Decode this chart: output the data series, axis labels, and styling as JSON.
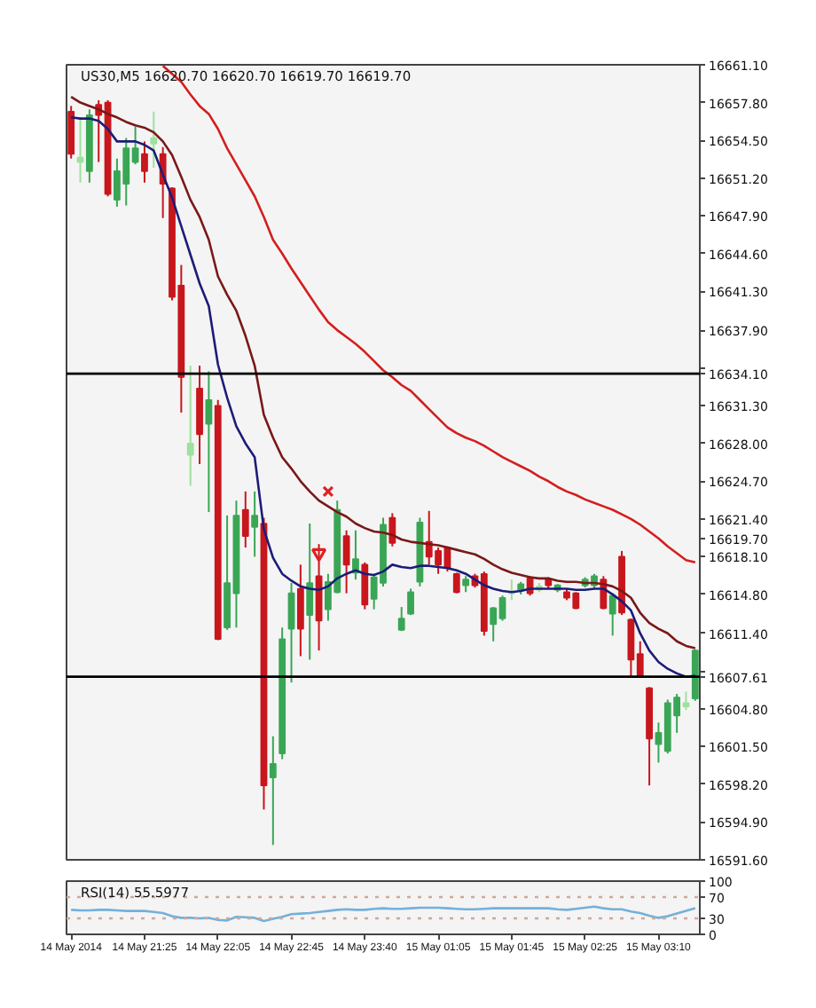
{
  "chart_data": [
    {
      "type": "candlestick",
      "title": "US30,M5 16620.70 16620.70 16619.70 16619.70",
      "categories": [
        "14 May 2014",
        null,
        null,
        null,
        null,
        null,
        null,
        null,
        "14 May 21:25",
        null,
        null,
        null,
        null,
        null,
        null,
        null,
        "14 May 22:05",
        null,
        null,
        null,
        null,
        null,
        null,
        null,
        "14 May 22:45",
        null,
        null,
        null,
        null,
        null,
        null,
        null,
        "14 May 23:40",
        null,
        null,
        null,
        null,
        null,
        null,
        null,
        "15 May 01:05",
        null,
        null,
        null,
        null,
        null,
        null,
        null,
        "15 May 01:45",
        null,
        null,
        null,
        null,
        null,
        null,
        null,
        "15 May 02:25",
        null,
        null,
        null,
        null,
        null,
        null,
        null,
        "15 May 03:10",
        null,
        null,
        null,
        null
      ],
      "ohlc": [
        [
          16657.0,
          16657.5,
          16652.9,
          16653.3
        ],
        [
          16652.6,
          16656.5,
          16650.8,
          16653.0
        ],
        [
          16651.8,
          16657.2,
          16650.8,
          16656.7
        ],
        [
          16657.6,
          16658.0,
          16652.6,
          16656.7
        ],
        [
          16657.8,
          16658.0,
          16649.6,
          16649.8
        ],
        [
          16649.3,
          16652.9,
          16648.7,
          16651.8
        ],
        [
          16650.7,
          16654.7,
          16648.8,
          16653.8
        ],
        [
          16652.6,
          16655.7,
          16652.4,
          16653.8
        ],
        [
          16653.3,
          16654.4,
          16650.8,
          16651.8
        ],
        [
          16654.2,
          16657.0,
          16652.1,
          16654.7
        ],
        [
          16653.3,
          16653.9,
          16647.7,
          16650.7
        ],
        [
          16650.3,
          16650.4,
          16640.5,
          16640.8
        ],
        [
          16641.8,
          16643.6,
          16630.7,
          16633.8
        ],
        [
          16627.0,
          16634.8,
          16624.3,
          16628.0
        ],
        [
          16632.8,
          16634.8,
          16626.2,
          16628.8
        ],
        [
          16629.7,
          16634.3,
          16622.0,
          16631.8
        ],
        [
          16631.3,
          16631.8,
          16610.8,
          16610.9
        ],
        [
          16611.9,
          16621.7,
          16611.7,
          16615.8
        ],
        [
          16614.9,
          16623.0,
          16611.9,
          16621.7
        ],
        [
          16622.2,
          16623.8,
          16618.9,
          16619.9
        ],
        [
          16620.7,
          16623.8,
          16618.1,
          16621.7
        ],
        [
          16621.0,
          16621.5,
          16596.0,
          16598.1
        ],
        [
          16598.8,
          16602.4,
          16592.9,
          16600.0
        ],
        [
          16600.9,
          16611.9,
          16600.4,
          16610.9
        ],
        [
          16611.8,
          16615.8,
          16607.1,
          16614.9
        ],
        [
          16615.3,
          16617.4,
          16609.4,
          16611.8
        ],
        [
          16613.0,
          16621.0,
          16609.1,
          16615.8
        ],
        [
          16616.4,
          16619.2,
          16609.9,
          16612.5
        ],
        [
          16613.5,
          16616.6,
          16612.5,
          16615.9
        ],
        [
          16615.0,
          16623.0,
          16614.9,
          16622.2
        ],
        [
          16619.9,
          16620.4,
          16614.9,
          16617.4
        ],
        [
          16616.7,
          16620.4,
          16616.1,
          16617.9
        ],
        [
          16617.4,
          16617.6,
          16613.5,
          16613.9
        ],
        [
          16614.4,
          16616.6,
          16613.5,
          16616.3
        ],
        [
          16615.8,
          16621.5,
          16615.5,
          16620.9
        ],
        [
          16621.5,
          16621.9,
          16619.0,
          16619.3
        ],
        [
          16611.7,
          16613.7,
          16611.6,
          16612.7
        ],
        [
          16613.1,
          16615.3,
          16613.0,
          16615.0
        ],
        [
          16615.9,
          16621.5,
          16615.5,
          16621.1
        ],
        [
          16619.4,
          16622.1,
          16617.4,
          16618.1
        ],
        [
          16618.6,
          16618.9,
          16616.6,
          16617.4
        ],
        [
          16618.9,
          16619.0,
          16616.8,
          16617.1
        ],
        [
          16616.6,
          16616.7,
          16614.9,
          16615.0
        ],
        [
          16615.6,
          16616.4,
          16615.0,
          16616.1
        ],
        [
          16616.4,
          16616.6,
          16615.4,
          16615.6
        ],
        [
          16616.6,
          16616.8,
          16611.2,
          16611.6
        ],
        [
          16612.2,
          16613.7,
          16610.7,
          16613.6
        ],
        [
          16612.7,
          16614.7,
          16612.5,
          16614.5
        ],
        [
          16614.9,
          16616.1,
          16614.3,
          16615.0
        ],
        [
          16615.2,
          16615.9,
          16614.8,
          16615.7
        ],
        [
          16616.2,
          16616.4,
          16614.7,
          16614.9
        ],
        [
          16615.2,
          16615.8,
          16615.0,
          16615.5
        ],
        [
          16616.1,
          16616.3,
          16615.3,
          16615.6
        ],
        [
          16615.2,
          16615.7,
          16615.0,
          16615.6
        ],
        [
          16615.0,
          16615.3,
          16614.3,
          16614.5
        ],
        [
          16614.9,
          16615.0,
          16613.5,
          16613.6
        ],
        [
          16615.6,
          16616.3,
          16615.4,
          16616.1
        ],
        [
          16615.6,
          16616.6,
          16615.3,
          16616.4
        ],
        [
          16616.1,
          16616.4,
          16613.5,
          16613.6
        ],
        [
          16613.1,
          16614.9,
          16611.2,
          16614.7
        ],
        [
          16618.1,
          16618.6,
          16613.0,
          16613.2
        ],
        [
          16612.6,
          16612.7,
          16607.6,
          16609.1
        ],
        [
          16609.6,
          16610.7,
          16607.6,
          16607.7
        ],
        [
          16606.6,
          16606.7,
          16598.1,
          16602.2
        ],
        [
          16601.7,
          16603.6,
          16600.1,
          16602.7
        ],
        [
          16601.1,
          16605.6,
          16600.9,
          16605.3
        ],
        [
          16604.2,
          16606.1,
          16602.7,
          16605.8
        ],
        [
          16605.0,
          16606.3,
          16604.7,
          16605.3
        ],
        [
          16605.7,
          16610.0,
          16605.5,
          16609.9
        ]
      ],
      "colors": [
        "#c8161d",
        "#9ee09e",
        "#3aa655",
        "#c8161d",
        "#c8161d",
        "#3aa655",
        "#3aa655",
        "#3aa655",
        "#c8161d",
        "#9ee09e",
        "#c8161d",
        "#c8161d",
        "#c8161d",
        "#9ee09e",
        "#c8161d",
        "#3aa655",
        "#c8161d",
        "#3aa655",
        "#3aa655",
        "#c8161d",
        "#3aa655",
        "#c8161d",
        "#3aa655",
        "#3aa655",
        "#3aa655",
        "#c8161d",
        "#3aa655",
        "#c8161d",
        "#3aa655",
        "#3aa655",
        "#c8161d",
        "#3aa655",
        "#c8161d",
        "#3aa655",
        "#3aa655",
        "#c8161d",
        "#3aa655",
        "#3aa655",
        "#3aa655",
        "#c8161d",
        "#c8161d",
        "#c8161d",
        "#c8161d",
        "#3aa655",
        "#c8161d",
        "#c8161d",
        "#3aa655",
        "#3aa655",
        "#9ee09e",
        "#3aa655",
        "#c8161d",
        "#9ee09e",
        "#c8161d",
        "#3aa655",
        "#c8161d",
        "#c8161d",
        "#3aa655",
        "#3aa655",
        "#c8161d",
        "#3aa655",
        "#c8161d",
        "#c8161d",
        "#c8161d",
        "#c8161d",
        "#3aa655",
        "#3aa655",
        "#3aa655",
        "#9ee09e",
        "#3aa655"
      ],
      "series": [
        {
          "type": "line",
          "color": "#1c1c78",
          "values": [
            16656.5,
            16656.4,
            16656.4,
            16656.2,
            16655.5,
            16654.4,
            16654.4,
            16654.4,
            16654.1,
            16653.6,
            16651.5,
            16649.5,
            16647.0,
            16644.5,
            16642.0,
            16640.0,
            16634.9,
            16632.0,
            16629.5,
            16628.0,
            16626.8,
            16620.5,
            16618.0,
            16616.6,
            16616.0,
            16615.5,
            16615.3,
            16615.2,
            16615.5,
            16616.2,
            16616.6,
            16616.9,
            16616.6,
            16616.5,
            16616.8,
            16617.4,
            16617.2,
            16617.1,
            16617.3,
            16617.3,
            16617.2,
            16617.1,
            16616.9,
            16616.6,
            16616.1,
            16615.6,
            16615.3,
            16615.1,
            16615.0,
            16615.1,
            16615.3,
            16615.3,
            16615.3,
            16615.3,
            16615.3,
            16615.2,
            16615.2,
            16615.3,
            16615.3,
            16614.8,
            16614.2,
            16613.4,
            16611.4,
            16609.9,
            16608.9,
            16608.3,
            16607.9,
            16607.6,
            16607.7
          ]
        },
        {
          "type": "line",
          "color": "#7a1818",
          "values": [
            16658.3,
            16657.8,
            16657.5,
            16657.2,
            16656.8,
            16656.5,
            16656.1,
            16655.8,
            16655.6,
            16655.2,
            16654.4,
            16653.2,
            16651.3,
            16649.3,
            16647.8,
            16645.8,
            16642.6,
            16641.0,
            16639.6,
            16637.4,
            16634.8,
            16630.5,
            16628.5,
            16626.8,
            16625.8,
            16624.7,
            16623.8,
            16623.0,
            16622.5,
            16622.0,
            16621.6,
            16621.0,
            16620.6,
            16620.3,
            16620.2,
            16620.0,
            16619.6,
            16619.4,
            16619.3,
            16619.2,
            16619.1,
            16618.9,
            16618.7,
            16618.5,
            16618.3,
            16617.9,
            16617.4,
            16617.0,
            16616.7,
            16616.5,
            16616.3,
            16616.2,
            16616.2,
            16616.0,
            16615.9,
            16615.9,
            16615.8,
            16615.8,
            16615.7,
            16615.5,
            16615.1,
            16614.5,
            16613.2,
            16612.3,
            16611.8,
            16611.4,
            16610.7,
            16610.3,
            16610.1
          ]
        },
        {
          "type": "line",
          "color": "#d41e1e",
          "values": [
            null,
            null,
            null,
            null,
            null,
            null,
            null,
            null,
            null,
            null,
            16661.0,
            16660.3,
            16659.6,
            16658.5,
            16657.5,
            16656.8,
            16655.5,
            16653.8,
            16652.4,
            16651.0,
            16649.6,
            16647.8,
            16645.8,
            16644.6,
            16643.3,
            16642.1,
            16640.9,
            16639.7,
            16638.6,
            16637.9,
            16637.3,
            16636.7,
            16636.0,
            16635.2,
            16634.4,
            16633.8,
            16633.1,
            16632.6,
            16631.8,
            16631.0,
            16630.2,
            16629.4,
            16628.9,
            16628.5,
            16628.2,
            16627.8,
            16627.3,
            16626.8,
            16626.4,
            16626.0,
            16625.6,
            16625.1,
            16624.7,
            16624.2,
            16623.8,
            16623.5,
            16623.1,
            16622.8,
            16622.5,
            16622.2,
            16621.8,
            16621.4,
            16620.9,
            16620.3,
            16619.7,
            16619.0,
            16618.4,
            16617.8,
            16617.6
          ]
        },
        {
          "type": "scatter",
          "marker": "cross",
          "color": "#e02020",
          "values": [
            null,
            null,
            null,
            null,
            null,
            null,
            null,
            null,
            null,
            null,
            null,
            null,
            null,
            null,
            null,
            null,
            null,
            null,
            null,
            null,
            null,
            null,
            null,
            null,
            null,
            null,
            null,
            null,
            16623.8,
            null,
            null,
            null,
            null,
            null,
            null,
            null,
            null,
            null,
            null,
            null,
            null,
            null,
            null,
            null,
            null,
            null,
            null,
            null,
            null,
            null,
            null,
            null,
            null,
            null,
            null,
            null,
            null,
            null,
            null,
            null,
            null,
            null,
            null,
            null,
            null,
            null,
            null,
            null,
            null
          ]
        },
        {
          "type": "scatter",
          "marker": "triangle",
          "color": "#e02020",
          "values": [
            null,
            null,
            null,
            null,
            null,
            null,
            null,
            null,
            null,
            null,
            null,
            null,
            null,
            null,
            null,
            null,
            null,
            null,
            null,
            null,
            null,
            null,
            null,
            null,
            null,
            null,
            null,
            16618.4,
            null,
            null,
            null,
            null,
            null,
            null,
            null,
            null,
            null,
            null,
            null,
            null,
            null,
            null,
            null,
            null,
            null,
            null,
            null,
            null,
            null,
            null,
            null,
            null,
            null,
            null,
            null,
            null,
            null,
            null,
            null,
            null,
            null,
            null,
            null,
            null,
            null,
            null,
            null,
            null,
            null
          ]
        }
      ],
      "ylim": [
        16591.6,
        16661.1
      ],
      "yticks": [
        {
          "value": 16661.1,
          "label": "16661.10"
        },
        {
          "value": 16657.8,
          "label": "16657.80"
        },
        {
          "value": 16654.5,
          "label": "16654.50"
        },
        {
          "value": 16651.2,
          "label": "16651.20"
        },
        {
          "value": 16647.9,
          "label": "16647.90"
        },
        {
          "value": 16644.6,
          "label": "16644.60"
        },
        {
          "value": 16641.3,
          "label": "16641.30"
        },
        {
          "value": 16637.9,
          "label": "16637.90"
        },
        {
          "value": 16634.6,
          "label": null
        },
        {
          "value": 16631.3,
          "label": "16631.30"
        },
        {
          "value": 16628.0,
          "label": "16628.00"
        },
        {
          "value": 16624.7,
          "label": "16624.70"
        },
        {
          "value": 16621.4,
          "label": "16621.40"
        },
        {
          "value": 16619.7,
          "label": "16619.70"
        },
        {
          "value": 16618.1,
          "label": "16618.10"
        },
        {
          "value": 16614.8,
          "label": "16614.80"
        },
        {
          "value": 16611.4,
          "label": "16611.40"
        },
        {
          "value": 16608.1,
          "label": null
        },
        {
          "value": 16604.8,
          "label": "16604.80"
        },
        {
          "value": 16601.5,
          "label": "16601.50"
        },
        {
          "value": 16598.2,
          "label": "16598.20"
        },
        {
          "value": 16594.9,
          "label": "16594.90"
        },
        {
          "value": 16591.6,
          "label": "16591.60"
        }
      ],
      "tick_labels": "y",
      "ref_lines": [
        {
          "axis": "y",
          "value": 16634.1,
          "label": "16634.10",
          "color": "#000000"
        },
        {
          "axis": "y",
          "value": 16607.61,
          "label": "16607.61",
          "color": "#000000"
        }
      ]
    },
    {
      "type": "line",
      "title": "RSI(14) 55.5977",
      "categories": [
        "14 May 2014",
        null,
        null,
        null,
        null,
        null,
        null,
        null,
        "14 May 21:25",
        null,
        null,
        null,
        null,
        null,
        null,
        null,
        "14 May 22:05",
        null,
        null,
        null,
        null,
        null,
        null,
        null,
        "14 May 22:45",
        null,
        null,
        null,
        null,
        null,
        null,
        null,
        "14 May 23:40",
        null,
        null,
        null,
        null,
        null,
        null,
        null,
        "15 May 01:05",
        null,
        null,
        null,
        null,
        null,
        null,
        null,
        "15 May 01:45",
        null,
        null,
        null,
        null,
        null,
        null,
        null,
        "15 May 02:25",
        null,
        null,
        null,
        null,
        null,
        null,
        null,
        "15 May 03:10",
        null,
        null,
        null,
        null
      ],
      "series": [
        {
          "color": "#74b0da",
          "values": [
            46,
            45,
            45,
            46,
            46,
            45,
            44,
            44,
            44,
            42,
            40,
            34,
            31,
            31,
            30,
            31,
            27,
            26,
            33,
            32,
            31,
            25,
            29,
            33,
            38,
            39,
            40,
            42,
            44,
            46,
            47,
            46,
            46,
            48,
            49,
            48,
            48,
            49,
            50,
            50,
            50,
            49,
            48,
            47,
            47,
            48,
            49,
            49,
            49,
            49,
            49,
            49,
            49,
            47,
            46,
            48,
            50,
            52,
            49,
            47,
            47,
            43,
            40,
            35,
            31,
            34,
            39,
            44,
            49
          ]
        }
      ],
      "ylim": [
        0,
        100
      ],
      "yticks": [
        100,
        70,
        30,
        0
      ],
      "ref_lines": [
        {
          "axis": "y",
          "value": 70,
          "color": "#d0a898",
          "line_style": "dotted"
        },
        {
          "axis": "y",
          "value": 30,
          "color": "#d0a898",
          "line_style": "dotted"
        }
      ]
    }
  ]
}
